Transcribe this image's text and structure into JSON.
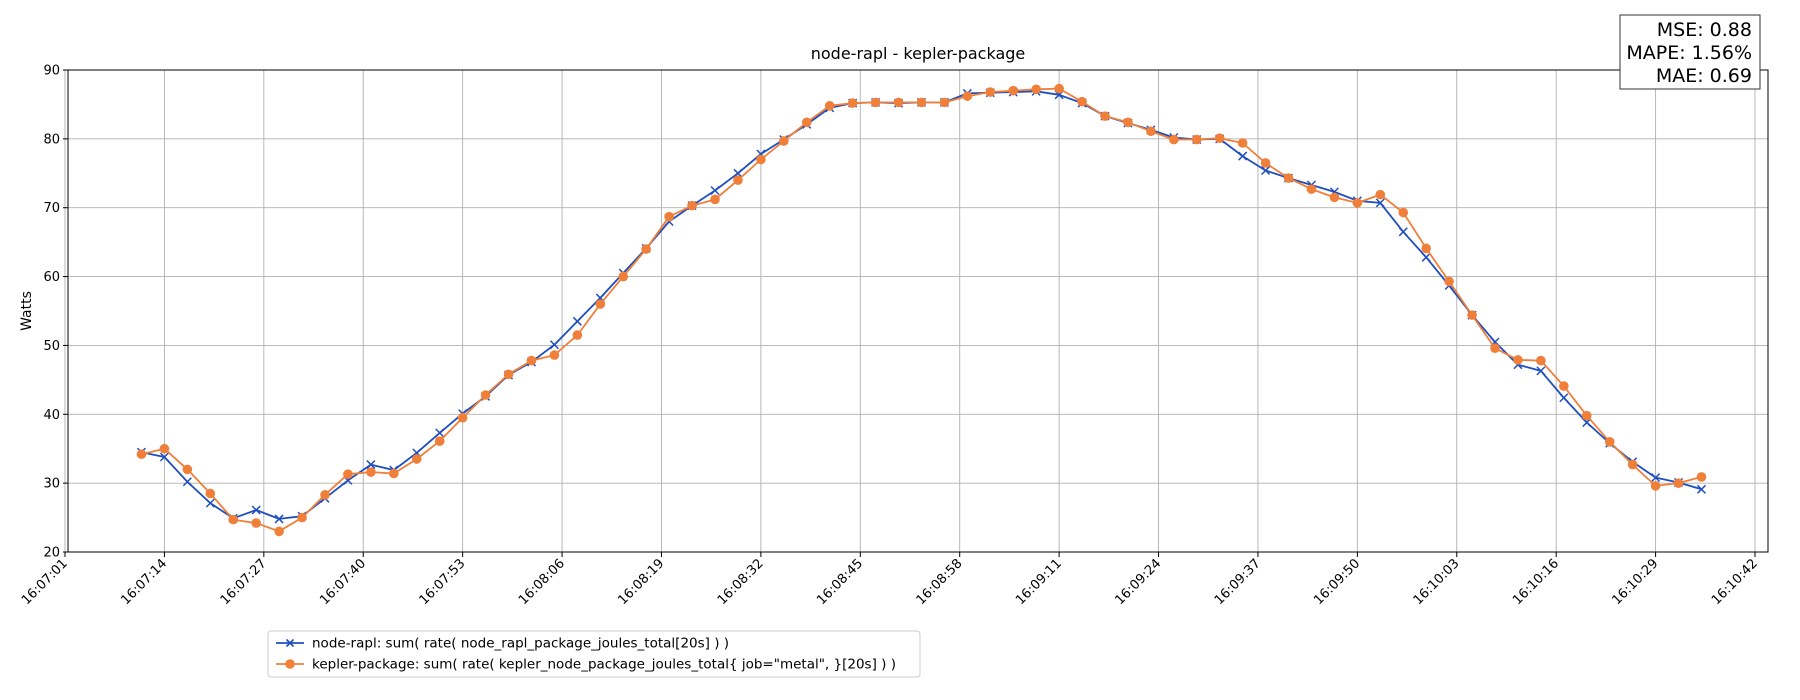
{
  "chart_data": {
    "type": "line",
    "title": "node-rapl - kepler-package",
    "ylabel": "Watts",
    "xlabel": "",
    "x_tick_labels": [
      "16:07:01",
      "16:07:14",
      "16:07:27",
      "16:07:40",
      "16:07:53",
      "16:08:06",
      "16:08:19",
      "16:08:32",
      "16:08:45",
      "16:08:58",
      "16:09:11",
      "16:09:24",
      "16:09:37",
      "16:09:50",
      "16:10:03",
      "16:10:16",
      "16:10:29",
      "16:10:42"
    ],
    "x_start": "16:07:01",
    "x_step_seconds": 3,
    "x_values": [
      "16:07:11",
      "16:07:14",
      "16:07:17",
      "16:07:20",
      "16:07:23",
      "16:07:26",
      "16:07:29",
      "16:07:32",
      "16:07:35",
      "16:07:38",
      "16:07:41",
      "16:07:44",
      "16:07:47",
      "16:07:50",
      "16:07:53",
      "16:07:56",
      "16:07:59",
      "16:08:02",
      "16:08:05",
      "16:08:08",
      "16:08:11",
      "16:08:14",
      "16:08:17",
      "16:08:20",
      "16:08:23",
      "16:08:26",
      "16:08:29",
      "16:08:32",
      "16:08:35",
      "16:08:38",
      "16:08:41",
      "16:08:44",
      "16:08:47",
      "16:08:50",
      "16:08:53",
      "16:08:56",
      "16:08:59",
      "16:09:02",
      "16:09:05",
      "16:09:08",
      "16:09:11",
      "16:09:14",
      "16:09:17",
      "16:09:20",
      "16:09:23",
      "16:09:26",
      "16:09:29",
      "16:09:32",
      "16:09:35",
      "16:09:38",
      "16:09:41",
      "16:09:44",
      "16:09:47",
      "16:09:50",
      "16:09:53",
      "16:09:56",
      "16:09:59",
      "16:10:02",
      "16:10:05",
      "16:10:08",
      "16:10:11",
      "16:10:14",
      "16:10:17",
      "16:10:20",
      "16:10:23",
      "16:10:26",
      "16:10:29",
      "16:10:32",
      "16:10:35"
    ],
    "ylim": [
      20,
      90
    ],
    "y_ticks": [
      20,
      30,
      40,
      50,
      60,
      70,
      80,
      90
    ],
    "grid": true,
    "legend_position": "bottom-left",
    "series": [
      {
        "name": "node-rapl: sum( rate( node_rapl_package_joules_total[20s] ) )",
        "color": "#1f4fbf",
        "marker": "x",
        "values": [
          34.5,
          33.8,
          30.2,
          27.1,
          24.9,
          26.1,
          24.8,
          25.2,
          27.8,
          30.4,
          32.7,
          31.9,
          34.4,
          37.3,
          40.1,
          42.6,
          45.7,
          47.6,
          50.1,
          53.5,
          56.9,
          60.5,
          64.1,
          68.0,
          70.3,
          72.5,
          75.0,
          77.8,
          79.9,
          82.1,
          84.5,
          85.2,
          85.3,
          85.2,
          85.3,
          85.3,
          86.6,
          86.7,
          86.8,
          86.9,
          86.4,
          85.2,
          83.3,
          82.3,
          81.3,
          80.2,
          79.9,
          80.0,
          77.5,
          75.4,
          74.3,
          73.3,
          72.3,
          71.0,
          70.7,
          66.5,
          62.8,
          58.7,
          54.4,
          50.5,
          47.2,
          46.3,
          42.4,
          38.8,
          35.8,
          33.1,
          30.8,
          30.1,
          29.1
        ]
      },
      {
        "name": "kepler-package: sum( rate( kepler_node_package_joules_total{ job=\"metal\", }[20s] ) )",
        "color": "#f07f3a",
        "marker": "o",
        "values": [
          34.2,
          35.0,
          32.0,
          28.5,
          24.7,
          24.2,
          23.0,
          25.0,
          28.3,
          31.3,
          31.6,
          31.4,
          33.5,
          36.1,
          39.5,
          42.8,
          45.8,
          47.8,
          48.6,
          51.5,
          56.0,
          60.0,
          64.0,
          68.7,
          70.3,
          71.2,
          74.0,
          77.0,
          79.7,
          82.4,
          84.8,
          85.2,
          85.3,
          85.3,
          85.3,
          85.3,
          86.2,
          86.8,
          87.0,
          87.2,
          87.3,
          85.4,
          83.3,
          82.4,
          81.1,
          79.9,
          79.9,
          80.1,
          79.4,
          76.5,
          74.3,
          72.7,
          71.5,
          70.7,
          71.9,
          69.3,
          64.1,
          59.3,
          54.4,
          49.6,
          47.9,
          47.8,
          44.1,
          39.8,
          36.0,
          32.7,
          29.6,
          30.0,
          30.9
        ]
      }
    ]
  },
  "stats": {
    "mse": "MSE: 0.88",
    "mape": "MAPE: 1.56%",
    "mae": "MAE: 0.69"
  }
}
